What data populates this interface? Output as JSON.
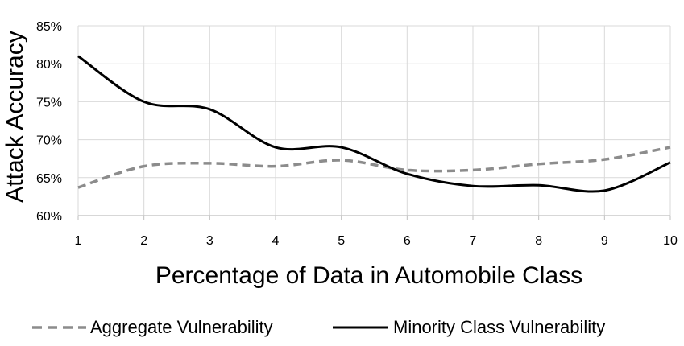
{
  "chart_data": {
    "type": "line",
    "x": [
      1,
      2,
      3,
      4,
      5,
      6,
      7,
      8,
      9,
      10
    ],
    "x_tick_labels": [
      "1",
      "2",
      "3",
      "4",
      "5",
      "6",
      "7",
      "8",
      "9",
      "10"
    ],
    "y_tick_labels": [
      "60%",
      "65%",
      "70%",
      "75%",
      "80%",
      "85%"
    ],
    "y_ticks": [
      60,
      65,
      70,
      75,
      80,
      85
    ],
    "xlim": [
      1,
      10
    ],
    "ylim": [
      60,
      85
    ],
    "xlabel": "Percentage of Data in Automobile Class",
    "ylabel": "Attack Accuracy",
    "grid": true,
    "legend_position": "bottom",
    "series": [
      {
        "name": "Aggregate Vulnerability",
        "style": "dashed",
        "color": "#8c8c8c",
        "values": [
          63.7,
          66.5,
          66.9,
          66.5,
          67.3,
          66.0,
          66.0,
          66.8,
          67.4,
          69.0
        ]
      },
      {
        "name": "Minority Class Vulnerability",
        "style": "solid",
        "color": "#000000",
        "values": [
          81.0,
          75.0,
          74.0,
          69.0,
          69.0,
          65.5,
          63.9,
          64.0,
          63.3,
          67.0
        ]
      }
    ]
  }
}
